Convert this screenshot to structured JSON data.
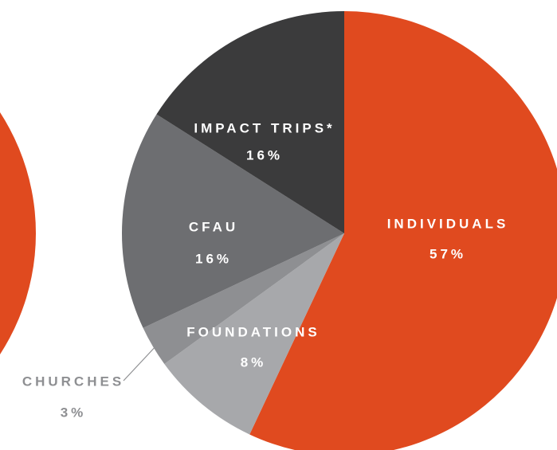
{
  "chart_data": {
    "type": "pie",
    "categories": [
      "INDIVIDUALS",
      "FOUNDATIONS",
      "CHURCHES",
      "CFAU",
      "IMPACT TRIPS*"
    ],
    "values": [
      57,
      8,
      3,
      16,
      16
    ],
    "value_labels": [
      "57%",
      "8%",
      "3%",
      "16%",
      "16%"
    ],
    "colors": [
      "#e04a1f",
      "#a7a8ab",
      "#8e8f92",
      "#6d6e71",
      "#3b3b3c"
    ]
  }
}
